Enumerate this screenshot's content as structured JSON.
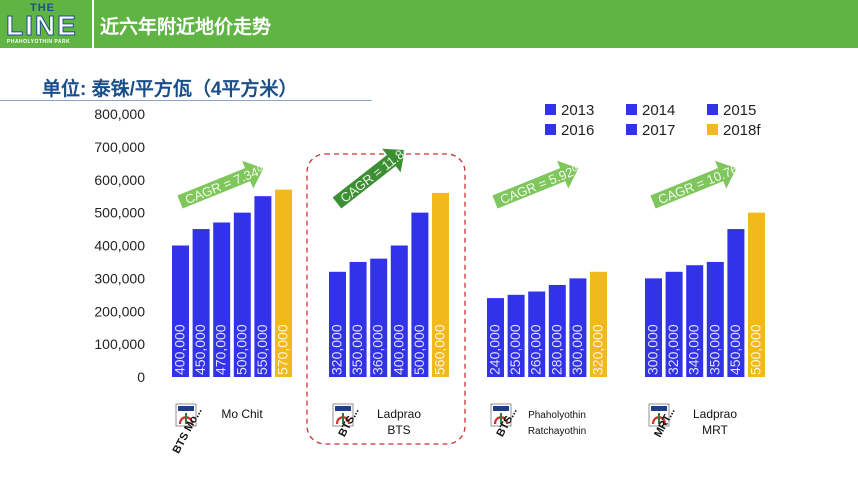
{
  "header": {
    "logo_top": "THE",
    "logo_main": "LINE",
    "logo_sub": "PHAHOLYOTHIN PARK",
    "title": "近六年附近地价走势"
  },
  "unit_label": "单位: 泰铢/平方佤（4平方米）",
  "colors": {
    "header_green": "#5fb443",
    "bar_blue": "#3232e8",
    "bar_gold": "#f2b91c",
    "arrow_green": "#7fc65d",
    "arrow_dark": "#3d8f33",
    "highlight_red": "#cc3333"
  },
  "chart_data": {
    "type": "bar",
    "ylim": [
      0,
      800000
    ],
    "yticks": [
      "800,000",
      "700,000",
      "600,000",
      "500,000",
      "400,000",
      "300,000",
      "200,000",
      "100,000",
      "0"
    ],
    "legend": [
      "2013",
      "2016",
      "2014",
      "2017",
      "2015",
      "2018f"
    ],
    "series": [
      "2013",
      "2014",
      "2015",
      "2016",
      "2017",
      "2018f"
    ],
    "legend_position": "top-right",
    "groups": [
      {
        "station_line1": "BTS Mo...",
        "station_line2": "Mo Chit",
        "station_line3": "",
        "icon": "bts-logo-icon",
        "values": [
          400000,
          450000,
          470000,
          500000,
          550000,
          570000
        ],
        "labels": [
          "400,000",
          "450,000",
          "470,000",
          "500,000",
          "550,000",
          "570,000"
        ],
        "cagr": "CAGR = 7.34%",
        "highlight": false
      },
      {
        "station_line1": "BTS...",
        "station_line2": "Ladprao",
        "station_line3": "BTS",
        "icon": "bts-logo-icon",
        "values": [
          320000,
          350000,
          360000,
          400000,
          500000,
          560000
        ],
        "labels": [
          "320,000",
          "350,000",
          "360,000",
          "400,000",
          "500,000",
          "560,000"
        ],
        "cagr": "CAGR = 11.84%",
        "highlight": true
      },
      {
        "station_line1": "BTS...",
        "station_line2": "Phaholyothin",
        "station_line3": "Ratchayothin",
        "icon": "bts-logo-icon",
        "values": [
          240000,
          250000,
          260000,
          280000,
          300000,
          320000
        ],
        "labels": [
          "240,000",
          "250,000",
          "260,000",
          "280,000",
          "300,000",
          "320,000"
        ],
        "cagr": "CAGR = 5.92%",
        "highlight": false
      },
      {
        "station_line1": "MRT...",
        "station_line2": "Ladprao",
        "station_line3": "MRT",
        "icon": "mrt-logo-icon",
        "values": [
          300000,
          320000,
          340000,
          350000,
          450000,
          500000
        ],
        "labels": [
          "300,000",
          "320,000",
          "340,000",
          "350,000",
          "450,000",
          "500,000"
        ],
        "cagr": "CAGR = 10.76%",
        "highlight": false
      }
    ]
  }
}
